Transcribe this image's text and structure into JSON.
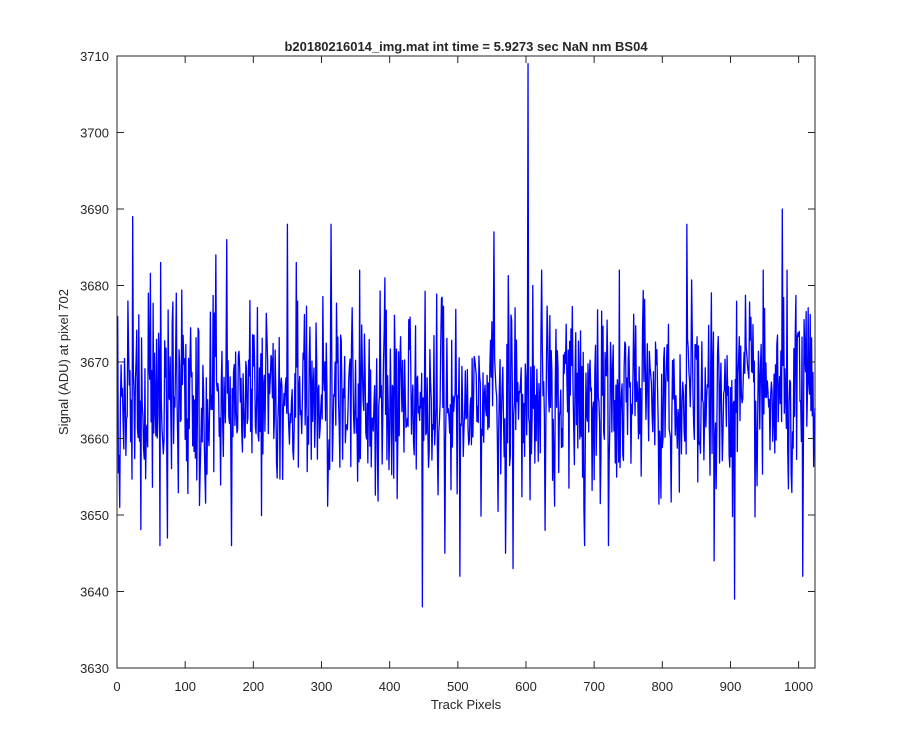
{
  "chart_data": {
    "type": "line",
    "title": "b20180216014_img.mat int time = 5.9273 sec  NaN nm BS04",
    "xlabel": "Track Pixels",
    "ylabel": "Signal (ADU) at pixel 702",
    "xlim": [
      0,
      1024
    ],
    "ylim": [
      3630,
      3710
    ],
    "xticks": [
      0,
      100,
      200,
      300,
      400,
      500,
      600,
      700,
      800,
      900,
      1000
    ],
    "yticks": [
      3630,
      3640,
      3650,
      3660,
      3670,
      3680,
      3690,
      3700,
      3710
    ],
    "grid": false,
    "legend": "none",
    "series": [
      {
        "color": "#0000ff",
        "x_start": 1,
        "x_step": 1,
        "n_points": 1024,
        "mean": 3665,
        "noise_std": 6.5,
        "highlights": [
          {
            "x": 1,
            "y": 3676
          },
          {
            "x": 4,
            "y": 3651
          },
          {
            "x": 23,
            "y": 3689
          },
          {
            "x": 46,
            "y": 3679
          },
          {
            "x": 64,
            "y": 3683
          },
          {
            "x": 63,
            "y": 3646
          },
          {
            "x": 74,
            "y": 3647
          },
          {
            "x": 145,
            "y": 3684
          },
          {
            "x": 161,
            "y": 3686
          },
          {
            "x": 168,
            "y": 3646
          },
          {
            "x": 250,
            "y": 3688
          },
          {
            "x": 263,
            "y": 3683
          },
          {
            "x": 314,
            "y": 3688
          },
          {
            "x": 393,
            "y": 3681
          },
          {
            "x": 448,
            "y": 3638
          },
          {
            "x": 481,
            "y": 3645
          },
          {
            "x": 503,
            "y": 3642
          },
          {
            "x": 553,
            "y": 3687
          },
          {
            "x": 570,
            "y": 3645
          },
          {
            "x": 581,
            "y": 3643
          },
          {
            "x": 603,
            "y": 3709
          },
          {
            "x": 606,
            "y": 3652
          },
          {
            "x": 686,
            "y": 3646
          },
          {
            "x": 721,
            "y": 3646
          },
          {
            "x": 836,
            "y": 3688
          },
          {
            "x": 876,
            "y": 3644
          },
          {
            "x": 906,
            "y": 3639
          },
          {
            "x": 976,
            "y": 3690
          },
          {
            "x": 1006,
            "y": 3642
          }
        ]
      }
    ]
  }
}
